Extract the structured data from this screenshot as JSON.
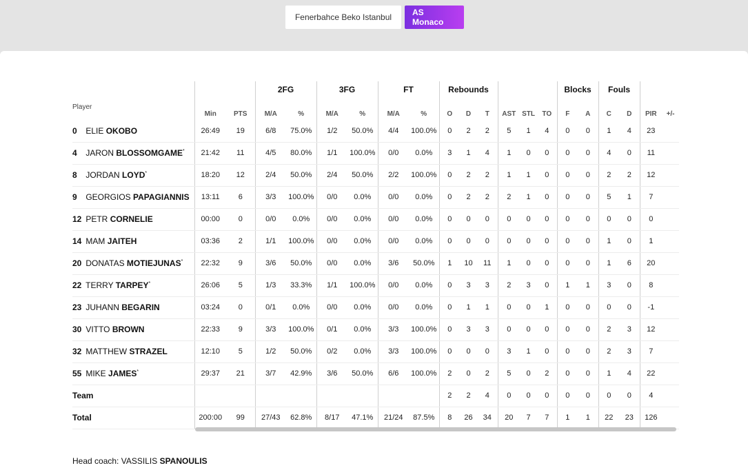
{
  "tabs": [
    {
      "label": "Fenerbahce Beko Istanbul",
      "active": false
    },
    {
      "label": "AS Monaco",
      "active": true
    }
  ],
  "groups": {
    "fg2": "2FG",
    "fg3": "3FG",
    "ft": "FT",
    "reb": "Rebounds",
    "blk": "Blocks",
    "fouls": "Fouls"
  },
  "columns": {
    "player": "Player",
    "min": "Min",
    "pts": "PTS",
    "ma2": "M/A",
    "pct2": "%",
    "ma3": "M/A",
    "pct3": "%",
    "maft": "M/A",
    "pctft": "%",
    "o": "O",
    "d": "D",
    "t": "T",
    "ast": "AST",
    "stl": "STL",
    "to": "TO",
    "bf": "F",
    "ba": "A",
    "fc": "C",
    "fd": "D",
    "pir": "PIR",
    "pm": "+/-"
  },
  "players": [
    {
      "num": "0",
      "first": "ELIE",
      "last": "OKOBO",
      "starter": false,
      "min": "26:49",
      "pts": "19",
      "fg2": "6/8",
      "fg2p": "75.0%",
      "fg3": "1/2",
      "fg3p": "50.0%",
      "ft": "4/4",
      "ftp": "100.0%",
      "o": "0",
      "d": "2",
      "t": "2",
      "ast": "5",
      "stl": "1",
      "to": "4",
      "bf": "0",
      "ba": "0",
      "fc": "1",
      "fd": "4",
      "pir": "23",
      "pm": ""
    },
    {
      "num": "4",
      "first": "JARON",
      "last": "BLOSSOMGAME",
      "starter": true,
      "min": "21:42",
      "pts": "11",
      "fg2": "4/5",
      "fg2p": "80.0%",
      "fg3": "1/1",
      "fg3p": "100.0%",
      "ft": "0/0",
      "ftp": "0.0%",
      "o": "3",
      "d": "1",
      "t": "4",
      "ast": "1",
      "stl": "0",
      "to": "0",
      "bf": "0",
      "ba": "0",
      "fc": "4",
      "fd": "0",
      "pir": "11",
      "pm": ""
    },
    {
      "num": "8",
      "first": "JORDAN",
      "last": "LOYD",
      "starter": true,
      "min": "18:20",
      "pts": "12",
      "fg2": "2/4",
      "fg2p": "50.0%",
      "fg3": "2/4",
      "fg3p": "50.0%",
      "ft": "2/2",
      "ftp": "100.0%",
      "o": "0",
      "d": "2",
      "t": "2",
      "ast": "1",
      "stl": "1",
      "to": "0",
      "bf": "0",
      "ba": "0",
      "fc": "2",
      "fd": "2",
      "pir": "12",
      "pm": ""
    },
    {
      "num": "9",
      "first": "GEORGIOS",
      "last": "PAPAGIANNIS",
      "starter": false,
      "min": "13:11",
      "pts": "6",
      "fg2": "3/3",
      "fg2p": "100.0%",
      "fg3": "0/0",
      "fg3p": "0.0%",
      "ft": "0/0",
      "ftp": "0.0%",
      "o": "0",
      "d": "2",
      "t": "2",
      "ast": "2",
      "stl": "1",
      "to": "0",
      "bf": "0",
      "ba": "0",
      "fc": "5",
      "fd": "1",
      "pir": "7",
      "pm": ""
    },
    {
      "num": "12",
      "first": "PETR",
      "last": "CORNELIE",
      "starter": false,
      "min": "00:00",
      "pts": "0",
      "fg2": "0/0",
      "fg2p": "0.0%",
      "fg3": "0/0",
      "fg3p": "0.0%",
      "ft": "0/0",
      "ftp": "0.0%",
      "o": "0",
      "d": "0",
      "t": "0",
      "ast": "0",
      "stl": "0",
      "to": "0",
      "bf": "0",
      "ba": "0",
      "fc": "0",
      "fd": "0",
      "pir": "0",
      "pm": ""
    },
    {
      "num": "14",
      "first": "MAM",
      "last": "JAITEH",
      "starter": false,
      "min": "03:36",
      "pts": "2",
      "fg2": "1/1",
      "fg2p": "100.0%",
      "fg3": "0/0",
      "fg3p": "0.0%",
      "ft": "0/0",
      "ftp": "0.0%",
      "o": "0",
      "d": "0",
      "t": "0",
      "ast": "0",
      "stl": "0",
      "to": "0",
      "bf": "0",
      "ba": "0",
      "fc": "1",
      "fd": "0",
      "pir": "1",
      "pm": ""
    },
    {
      "num": "20",
      "first": "DONATAS",
      "last": "MOTIEJUNAS",
      "starter": true,
      "min": "22:32",
      "pts": "9",
      "fg2": "3/6",
      "fg2p": "50.0%",
      "fg3": "0/0",
      "fg3p": "0.0%",
      "ft": "3/6",
      "ftp": "50.0%",
      "o": "1",
      "d": "10",
      "t": "11",
      "ast": "1",
      "stl": "0",
      "to": "0",
      "bf": "0",
      "ba": "0",
      "fc": "1",
      "fd": "6",
      "pir": "20",
      "pm": ""
    },
    {
      "num": "22",
      "first": "TERRY",
      "last": "TARPEY",
      "starter": true,
      "min": "26:06",
      "pts": "5",
      "fg2": "1/3",
      "fg2p": "33.3%",
      "fg3": "1/1",
      "fg3p": "100.0%",
      "ft": "0/0",
      "ftp": "0.0%",
      "o": "0",
      "d": "3",
      "t": "3",
      "ast": "2",
      "stl": "3",
      "to": "0",
      "bf": "1",
      "ba": "1",
      "fc": "3",
      "fd": "0",
      "pir": "8",
      "pm": ""
    },
    {
      "num": "23",
      "first": "JUHANN",
      "last": "BEGARIN",
      "starter": false,
      "min": "03:24",
      "pts": "0",
      "fg2": "0/1",
      "fg2p": "0.0%",
      "fg3": "0/0",
      "fg3p": "0.0%",
      "ft": "0/0",
      "ftp": "0.0%",
      "o": "0",
      "d": "1",
      "t": "1",
      "ast": "0",
      "stl": "0",
      "to": "1",
      "bf": "0",
      "ba": "0",
      "fc": "0",
      "fd": "0",
      "pir": "-1",
      "pm": ""
    },
    {
      "num": "30",
      "first": "VITTO",
      "last": "BROWN",
      "starter": false,
      "min": "22:33",
      "pts": "9",
      "fg2": "3/3",
      "fg2p": "100.0%",
      "fg3": "0/1",
      "fg3p": "0.0%",
      "ft": "3/3",
      "ftp": "100.0%",
      "o": "0",
      "d": "3",
      "t": "3",
      "ast": "0",
      "stl": "0",
      "to": "0",
      "bf": "0",
      "ba": "0",
      "fc": "2",
      "fd": "3",
      "pir": "12",
      "pm": ""
    },
    {
      "num": "32",
      "first": "MATTHEW",
      "last": "STRAZEL",
      "starter": false,
      "min": "12:10",
      "pts": "5",
      "fg2": "1/2",
      "fg2p": "50.0%",
      "fg3": "0/2",
      "fg3p": "0.0%",
      "ft": "3/3",
      "ftp": "100.0%",
      "o": "0",
      "d": "0",
      "t": "0",
      "ast": "3",
      "stl": "1",
      "to": "0",
      "bf": "0",
      "ba": "0",
      "fc": "2",
      "fd": "3",
      "pir": "7",
      "pm": ""
    },
    {
      "num": "55",
      "first": "MIKE",
      "last": "JAMES",
      "starter": true,
      "min": "29:37",
      "pts": "21",
      "fg2": "3/7",
      "fg2p": "42.9%",
      "fg3": "3/6",
      "fg3p": "50.0%",
      "ft": "6/6",
      "ftp": "100.0%",
      "o": "2",
      "d": "0",
      "t": "2",
      "ast": "5",
      "stl": "0",
      "to": "2",
      "bf": "0",
      "ba": "0",
      "fc": "1",
      "fd": "4",
      "pir": "22",
      "pm": ""
    }
  ],
  "team": {
    "label": "Team",
    "min": "",
    "pts": "",
    "fg2": "",
    "fg2p": "",
    "fg3": "",
    "fg3p": "",
    "ft": "",
    "ftp": "",
    "o": "2",
    "d": "2",
    "t": "4",
    "ast": "0",
    "stl": "0",
    "to": "0",
    "bf": "0",
    "ba": "0",
    "fc": "0",
    "fd": "0",
    "pir": "4",
    "pm": ""
  },
  "total": {
    "label": "Total",
    "min": "200:00",
    "pts": "99",
    "fg2": "27/43",
    "fg2p": "62.8%",
    "fg3": "8/17",
    "fg3p": "47.1%",
    "ft": "21/24",
    "ftp": "87.5%",
    "o": "8",
    "d": "26",
    "t": "34",
    "ast": "20",
    "stl": "7",
    "to": "7",
    "bf": "1",
    "ba": "1",
    "fc": "22",
    "fd": "23",
    "pir": "126",
    "pm": ""
  },
  "coach": {
    "label": "Head coach:",
    "first": "VASSILIS",
    "last": "SPANOULIS"
  }
}
